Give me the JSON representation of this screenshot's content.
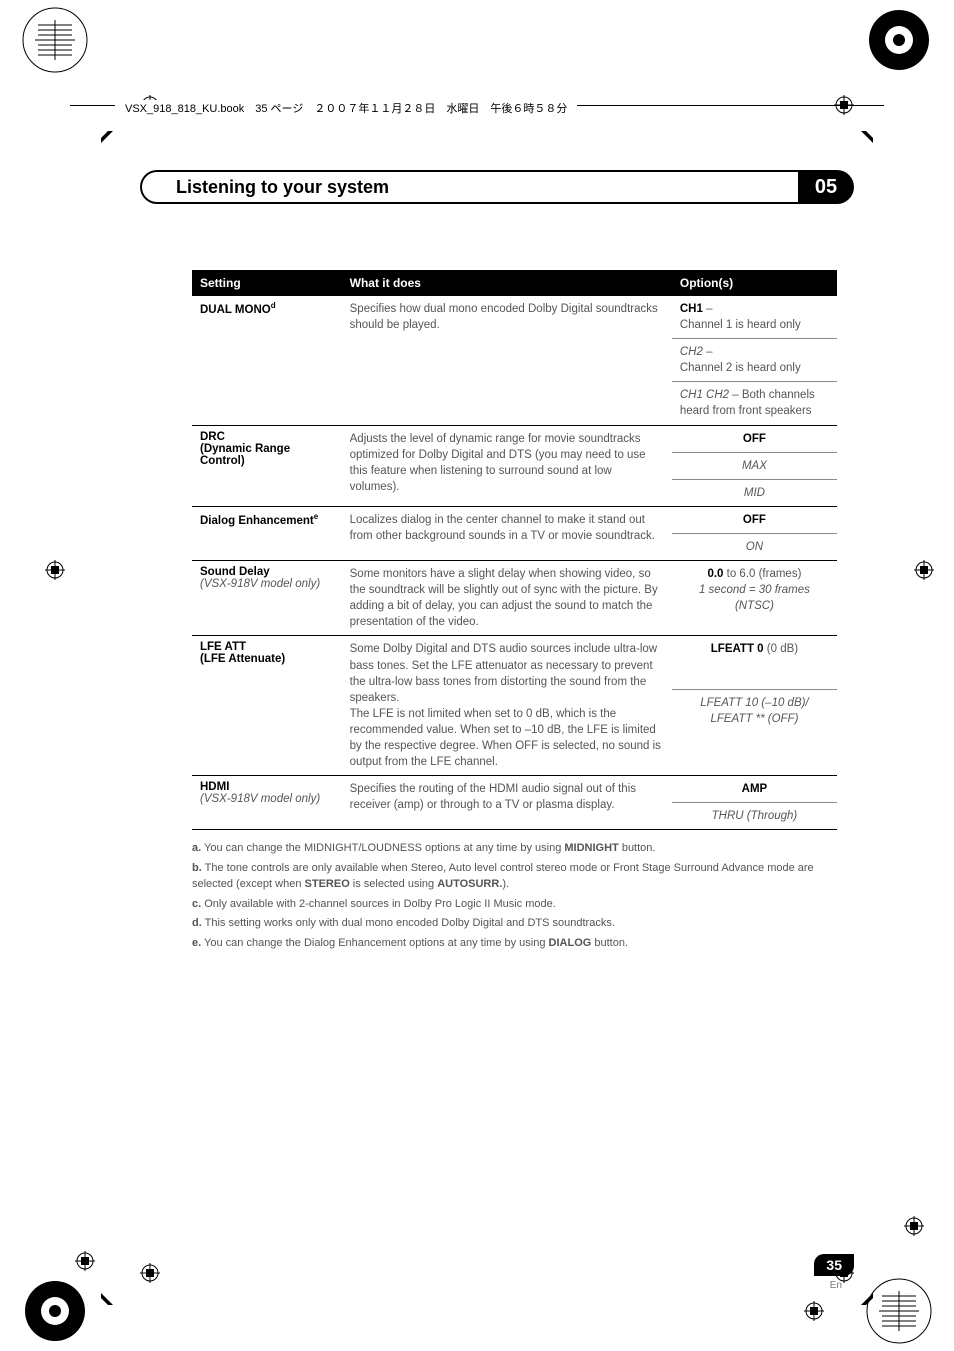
{
  "header": "VSX_918_818_KU.book　35 ページ　２００７年１１月２８日　水曜日　午後６時５８分",
  "title": "Listening to your system",
  "chapter": "05",
  "table": {
    "headers": [
      "Setting",
      "What it does",
      "Option(s)"
    ],
    "rows": [
      {
        "setting": "DUAL MONO",
        "setting_sup": "d",
        "what": "Specifies how dual mono encoded Dolby Digital soundtracks should be played.",
        "opts": [
          {
            "html": "<span class='bold'>CH1</span> – <br>Channel 1 is heard only",
            "align": "left"
          },
          {
            "html": "<span class='italic2'>CH2</span> – <br>Channel 2 is heard only",
            "align": "left"
          },
          {
            "html": "<span class='italic2'>CH1 CH2</span> – Both channels heard from front speakers",
            "align": "left"
          }
        ]
      },
      {
        "setting": "DRC",
        "setting2": "(Dynamic Range Control)",
        "what": "Adjusts the level of dynamic range for movie soundtracks optimized for Dolby Digital and DTS (you may need to use this feature when listening to surround sound at low volumes).",
        "opts": [
          {
            "html": "<span class='bold'>OFF</span>"
          },
          {
            "html": "<span class='italic2'>MAX</span>"
          },
          {
            "html": "<span class='italic2'>MID</span>"
          }
        ]
      },
      {
        "setting": "Dialog Enhancement",
        "setting_sup": "e",
        "what": "Localizes dialog in the center channel to make it stand out from other background sounds in a TV or movie soundtrack.",
        "opts": [
          {
            "html": "<span class='bold'>OFF</span>"
          },
          {
            "html": "<span class='italic2'>ON</span>"
          }
        ]
      },
      {
        "setting": "Sound Delay",
        "setting_italic": "(VSX-918V model only)",
        "what": "Some monitors have a slight delay when showing video, so the soundtrack will be slightly out of sync with the picture. By adding a bit of delay, you can adjust the sound to match the presentation of the video.",
        "opts": [
          {
            "html": "<span class='bold'>0.0</span> to 6.0 (frames)<br><span class='italic2'>1 second = 30 frames (NTSC)</span>"
          }
        ]
      },
      {
        "setting": "LFE ATT",
        "setting2": "(LFE Attenuate)",
        "what": "Some Dolby Digital and DTS audio sources include ultra-low bass tones. Set the LFE attenuator as necessary to prevent the ultra-low bass tones from distorting the sound from the speakers.<br>The LFE is not limited when set to 0 dB, which is the recommended value. When set to –10 dB, the LFE is limited by the respective degree. When OFF is selected, no sound is output from the LFE channel.",
        "opts": [
          {
            "html": "<span class='bold'>LFEATT 0</span> (0 dB)"
          },
          {
            "html": "<span class='italic2'>LFEATT 10 (–10 dB)/<br>LFEATT ** (OFF)</span>"
          }
        ]
      },
      {
        "setting": "HDMI",
        "setting_italic": "(VSX-918V model only)",
        "what": "Specifies the routing of the HDMI audio signal out of this receiver (amp) or through to a TV or plasma display.",
        "opts": [
          {
            "html": "<span class='bold'>AMP</span>"
          },
          {
            "html": "<span class='italic2'>THRU (Through)</span>"
          }
        ]
      }
    ]
  },
  "footnotes": [
    {
      "label": "a.",
      "text": "You can change the MIDNIGHT/LOUDNESS options at any time by using <b>MIDNIGHT</b> button."
    },
    {
      "label": "b.",
      "text": "The tone controls are only available when Stereo, Auto level control stereo mode or Front Stage Surround Advance mode are selected (except when <b>STEREO</b> is selected using <b>AUTOSURR.</b>)."
    },
    {
      "label": "c.",
      "text": "Only available with 2-channel sources in Dolby Pro Logic II Music mode."
    },
    {
      "label": "d.",
      "text": "This setting works only with dual mono encoded Dolby Digital and DTS soundtracks."
    },
    {
      "label": "e.",
      "text": "You can change the Dialog Enhancement options at any time by using <b>DIALOG</b> button."
    }
  ],
  "page_num": "35",
  "page_lang": "En"
}
